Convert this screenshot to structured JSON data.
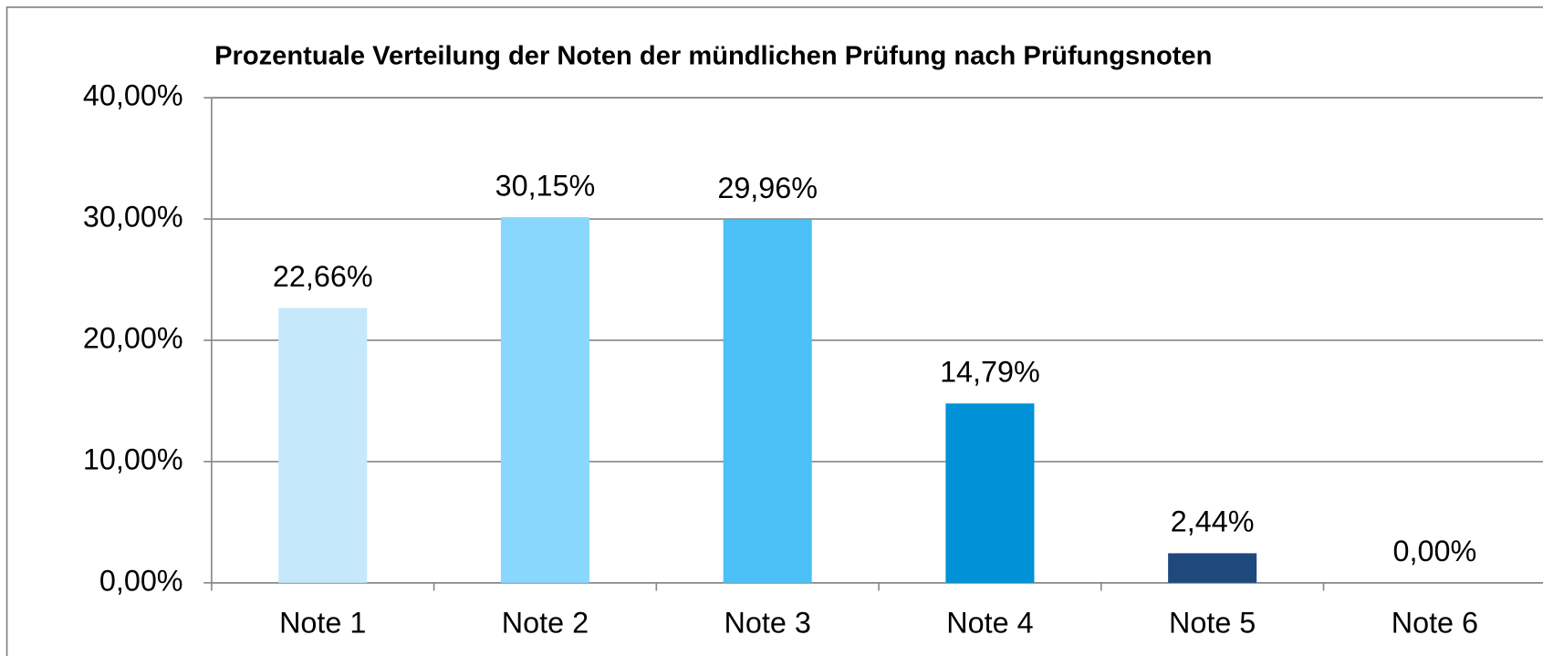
{
  "chart_data": {
    "type": "bar",
    "title": "Prozentuale Verteilung der Noten der mündlichen Prüfung nach Prüfungsnoten",
    "categories": [
      "Note 1",
      "Note 2",
      "Note 3",
      "Note 4",
      "Note 5",
      "Note 6"
    ],
    "values": [
      22.66,
      30.15,
      29.96,
      14.79,
      2.44,
      0
    ],
    "value_labels": [
      "22,66%",
      "30,15%",
      "29,96%",
      "14,79%",
      "2,44%",
      "0,00%"
    ],
    "colors": [
      "#c5e9fb",
      "#8ad7fd",
      "#4bc1f7",
      "#0091d6",
      "#1f497d",
      "#1f497d"
    ],
    "ylim": [
      0,
      40
    ],
    "yticks": [
      {
        "value": 0,
        "label": "0,00%"
      },
      {
        "value": 10,
        "label": "10,00%"
      },
      {
        "value": 20,
        "label": "20,00%"
      },
      {
        "value": 30,
        "label": "30,00%"
      },
      {
        "value": 40,
        "label": "40,00%"
      }
    ],
    "grid": true
  }
}
